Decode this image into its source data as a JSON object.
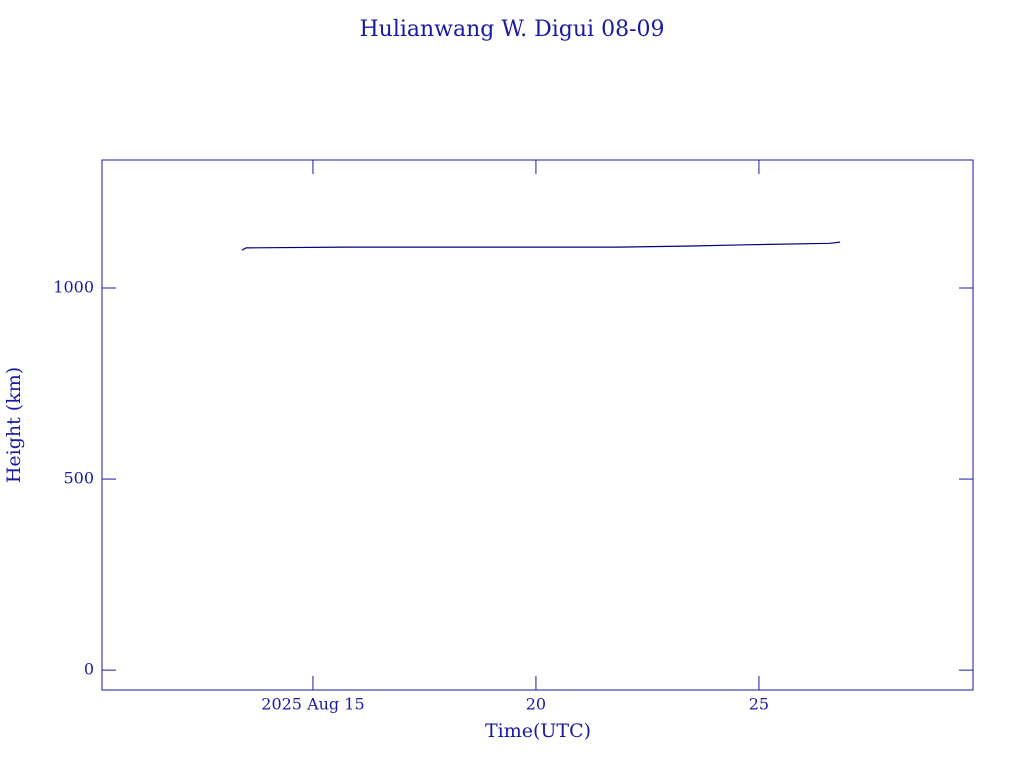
{
  "chart_data": {
    "type": "line",
    "title": "Hulianwang W. Digui 08-09",
    "x_label": "Time(UTC)",
    "y_label": "Height (km)",
    "x": [
      13.41,
      13.5,
      15.75,
      21.84,
      23.5,
      24.69,
      26.6,
      26.82
    ],
    "series": [
      {
        "color": "#000080",
        "values": [
          1099,
          1105,
          1107,
          1107,
          1110,
          1113,
          1117,
          1120
        ]
      }
    ],
    "xlim": [
      10.27,
      29.8
    ],
    "xticks": [
      {
        "value": 15,
        "label": "2025 Aug 15"
      },
      20,
      25
    ],
    "ylim": [
      -52,
      1335
    ],
    "yticks": [
      0,
      500,
      1000
    ],
    "axis_color": "#1a1aa0"
  }
}
